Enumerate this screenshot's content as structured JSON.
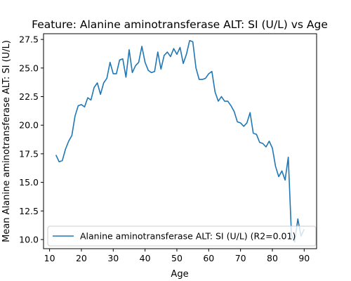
{
  "chart_data": {
    "type": "line",
    "title": "Feature: Alanine aminotransferase ALT: SI (U/L) vs Age",
    "xlabel": "Age",
    "ylabel": "Mean Alanine aminotransferase ALT: SI (U/L)",
    "xlim": [
      8.1,
      93.9
    ],
    "ylim": [
      9.2,
      28.0
    ],
    "xticks": [
      10,
      20,
      30,
      40,
      50,
      60,
      70,
      80,
      90
    ],
    "yticks": [
      10.0,
      12.5,
      15.0,
      17.5,
      20.0,
      22.5,
      25.0,
      27.5
    ],
    "xtick_labels": [
      "10",
      "20",
      "30",
      "40",
      "50",
      "60",
      "70",
      "80",
      "90"
    ],
    "ytick_labels": [
      "10.0",
      "12.5",
      "15.0",
      "17.5",
      "20.0",
      "22.5",
      "25.0",
      "27.5"
    ],
    "grid": false,
    "legend_position": "lower-right",
    "series": [
      {
        "name": "Alanine aminotransferase ALT: SI (U/L) (R2=0.01)",
        "color": "#1f77b4",
        "x": [
          12,
          13,
          14,
          15,
          16,
          17,
          18,
          19,
          20,
          21,
          22,
          23,
          24,
          25,
          26,
          27,
          28,
          29,
          30,
          31,
          32,
          33,
          34,
          35,
          36,
          37,
          38,
          39,
          40,
          41,
          42,
          43,
          44,
          45,
          46,
          47,
          48,
          49,
          50,
          51,
          52,
          53,
          54,
          55,
          56,
          57,
          58,
          59,
          60,
          61,
          62,
          63,
          64,
          65,
          66,
          67,
          68,
          69,
          70,
          71,
          72,
          73,
          74,
          75,
          76,
          77,
          78,
          79,
          80,
          81,
          82,
          83,
          84,
          85,
          86,
          87,
          88,
          89,
          90
        ],
        "y": [
          17.4,
          16.8,
          16.9,
          17.9,
          18.6,
          19.1,
          20.8,
          21.7,
          21.8,
          21.6,
          22.4,
          22.2,
          23.3,
          23.7,
          22.7,
          23.7,
          24.1,
          25.5,
          24.5,
          24.5,
          25.7,
          25.8,
          24.2,
          26.6,
          24.6,
          25.2,
          25.5,
          26.9,
          25.5,
          24.8,
          24.6,
          24.7,
          26.4,
          24.9,
          26.1,
          26.4,
          26.0,
          26.7,
          26.2,
          26.8,
          25.4,
          26.2,
          27.4,
          27.3,
          25.0,
          24.0,
          24.0,
          24.1,
          24.5,
          24.7,
          22.9,
          22.1,
          22.5,
          22.1,
          22.1,
          21.7,
          21.2,
          20.3,
          20.2,
          19.9,
          20.2,
          21.1,
          19.3,
          19.2,
          18.5,
          18.4,
          18.1,
          18.6,
          18.0,
          16.4,
          15.5,
          16.0,
          15.2,
          17.2,
          10.4,
          9.8,
          11.8,
          10.3,
          10.9
        ]
      }
    ]
  }
}
